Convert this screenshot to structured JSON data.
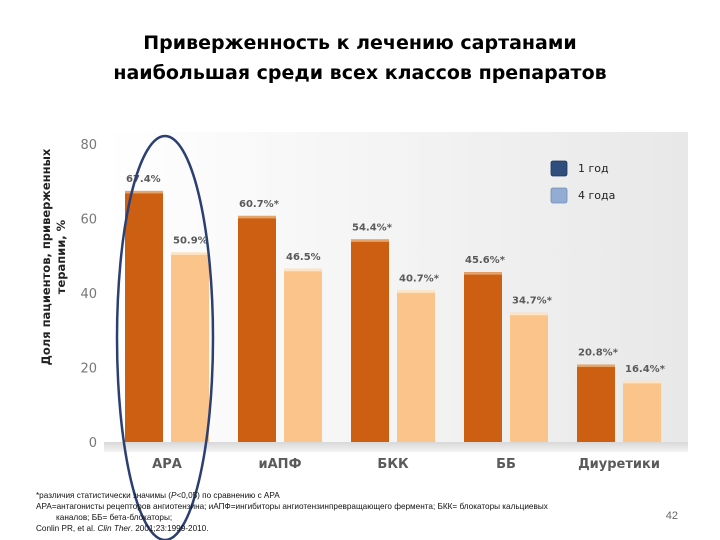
{
  "title": {
    "line1": "Приверженность к лечению сартанами",
    "line2": "наибольшая среди всех классов препаратов"
  },
  "chart_data": {
    "type": "bar",
    "ylabel": "Доля пациентов, приверженных терапии, %",
    "ylim": [
      0,
      80
    ],
    "yticks": [
      0,
      20,
      40,
      60,
      80
    ],
    "grid": false,
    "legend_position": "top-right",
    "categories": [
      "АРА",
      "иАПФ",
      "БКК",
      "ББ",
      "Диуретики"
    ],
    "series": [
      {
        "name": "1 год",
        "color": "#cc5f12",
        "values": [
          67.4,
          60.7,
          54.4,
          45.6,
          20.8
        ],
        "labels": [
          "67.4%",
          "60.7%*",
          "54.4%*",
          "45.6%*",
          "20.8%*"
        ]
      },
      {
        "name": "4 года",
        "color": "#fbc48b",
        "values": [
          50.9,
          46.5,
          40.7,
          34.7,
          16.4
        ],
        "labels": [
          "50.9%",
          "46.5%",
          "40.7%*",
          "34.7%*",
          "16.4%*"
        ]
      }
    ],
    "annotations": [
      "oval highlighting АРА"
    ]
  },
  "legend_colors": {
    "series1": "#2f4e7e",
    "series2": "#93acd1"
  },
  "footnote": {
    "line1_prefix": "*различия статистически значимы (",
    "line1_p": "P",
    "line1_suffix": "<0,05) по сравнению с АРА",
    "line2": "АРА=антагонисты рецепторов ангиотензина; иАПФ=ингибиторы ангиотензинпревращающего фермента; БКК= блокаторы кальциевых",
    "line3": "каналов; ББ= бета-блокаторы;",
    "line4_authors": "Conlin PR, et al. ",
    "line4_journal": "Clin Ther",
    "line4_suffix": ". 2001;23:1999-2010."
  },
  "page_number": "42"
}
